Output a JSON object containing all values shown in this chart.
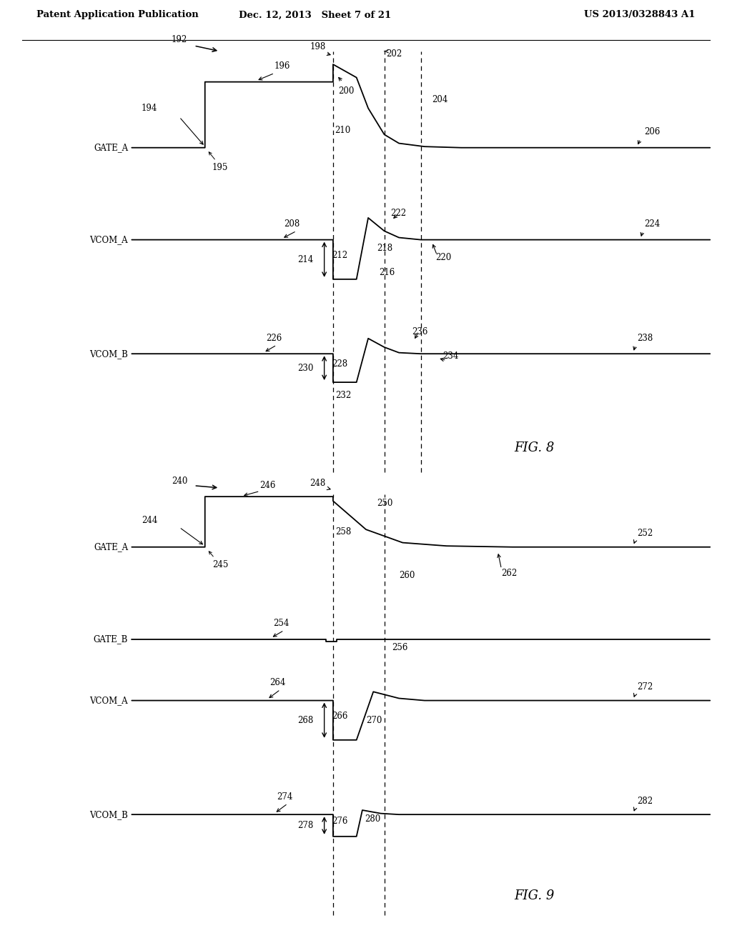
{
  "bg_color": "#ffffff",
  "line_color": "#000000",
  "header": {
    "left": "Patent Application Publication",
    "center": "Dec. 12, 2013   Sheet 7 of 21",
    "right": "US 2013/0328843 A1"
  }
}
